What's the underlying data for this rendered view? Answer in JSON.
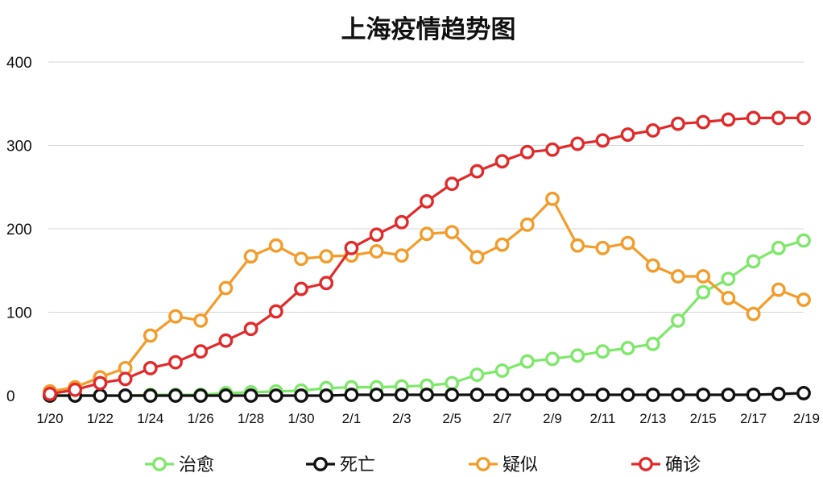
{
  "chart_data": {
    "type": "line",
    "title": "上海疫情趋势图",
    "xlabel": "",
    "ylabel": "",
    "ylim": [
      0,
      400
    ],
    "yticks": [
      0,
      100,
      200,
      300,
      400
    ],
    "grid": true,
    "legend_position": "bottom",
    "x": [
      "1/20",
      "1/21",
      "1/22",
      "1/23",
      "1/24",
      "1/25",
      "1/26",
      "1/27",
      "1/28",
      "1/29",
      "1/30",
      "1/31",
      "2/1",
      "2/2",
      "2/3",
      "2/4",
      "2/5",
      "2/6",
      "2/7",
      "2/8",
      "2/9",
      "2/10",
      "2/11",
      "2/12",
      "2/13",
      "2/14",
      "2/15",
      "2/16",
      "2/17",
      "2/18",
      "2/19"
    ],
    "xtick_labels": [
      "1/20",
      "1/22",
      "1/24",
      "1/26",
      "1/28",
      "1/30",
      "2/1",
      "2/3",
      "2/5",
      "2/7",
      "2/9",
      "2/11",
      "2/13",
      "2/15",
      "2/17",
      "2/19"
    ],
    "series": [
      {
        "name": "治愈",
        "color": "#7ee86a",
        "values": [
          0,
          0,
          0,
          0,
          1,
          1,
          1,
          3,
          4,
          5,
          6,
          9,
          10,
          10,
          11,
          12,
          15,
          25,
          30,
          41,
          44,
          48,
          53,
          57,
          62,
          90,
          124,
          140,
          161,
          177,
          186
        ]
      },
      {
        "name": "死亡",
        "color": "#111111",
        "values": [
          0,
          0,
          0,
          0,
          0,
          0,
          0,
          0,
          0,
          0,
          0,
          0,
          1,
          1,
          1,
          1,
          1,
          1,
          1,
          1,
          1,
          1,
          1,
          1,
          1,
          1,
          1,
          1,
          1,
          2,
          3
        ]
      },
      {
        "name": "疑似",
        "color": "#f39c2a",
        "values": [
          5,
          10,
          22,
          33,
          72,
          95,
          90,
          129,
          167,
          180,
          164,
          167,
          168,
          173,
          168,
          194,
          196,
          166,
          181,
          205,
          236,
          180,
          177,
          183,
          156,
          143,
          143,
          117,
          98,
          127,
          115
        ]
      },
      {
        "name": "确诊",
        "color": "#e12b2b",
        "values": [
          2,
          7,
          15,
          20,
          33,
          40,
          53,
          66,
          80,
          101,
          128,
          135,
          177,
          193,
          208,
          233,
          254,
          269,
          281,
          292,
          295,
          302,
          306,
          313,
          318,
          326,
          328,
          331,
          333,
          333,
          333
        ]
      }
    ]
  }
}
